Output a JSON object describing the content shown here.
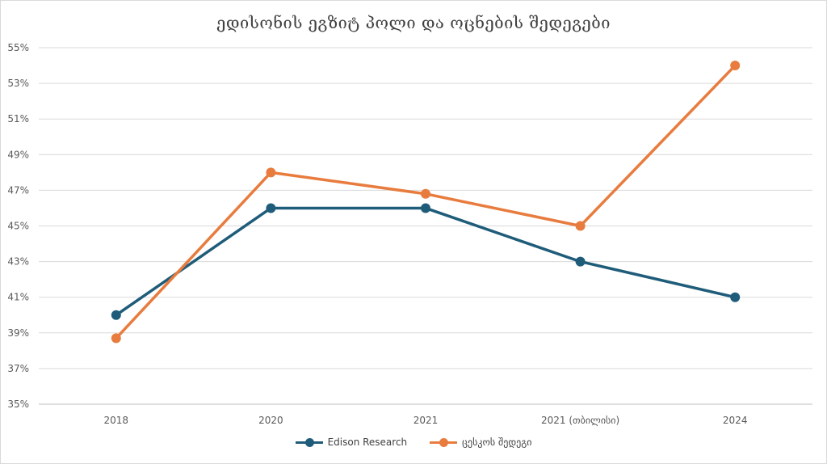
{
  "chart_data": {
    "type": "line",
    "title": "ედისონის ეგზიტ პოლი და ოცნების შედეგები",
    "categories": [
      "2018",
      "2020",
      "2021",
      "2021 (თბილისი)",
      "2024"
    ],
    "y_ticks": [
      "35%",
      "37%",
      "39%",
      "41%",
      "43%",
      "45%",
      "47%",
      "49%",
      "51%",
      "53%",
      "55%"
    ],
    "ylim": [
      35,
      55
    ],
    "y_unit": "%",
    "grid": true,
    "legend_position": "bottom",
    "series": [
      {
        "name": "Edison Research",
        "color": "#1f5c7a",
        "values": [
          40,
          46,
          46,
          43,
          41
        ]
      },
      {
        "name": "ცესკოს შედეგი",
        "color": "#e87c3e",
        "values": [
          38.7,
          48,
          46.8,
          45,
          54
        ]
      }
    ]
  }
}
